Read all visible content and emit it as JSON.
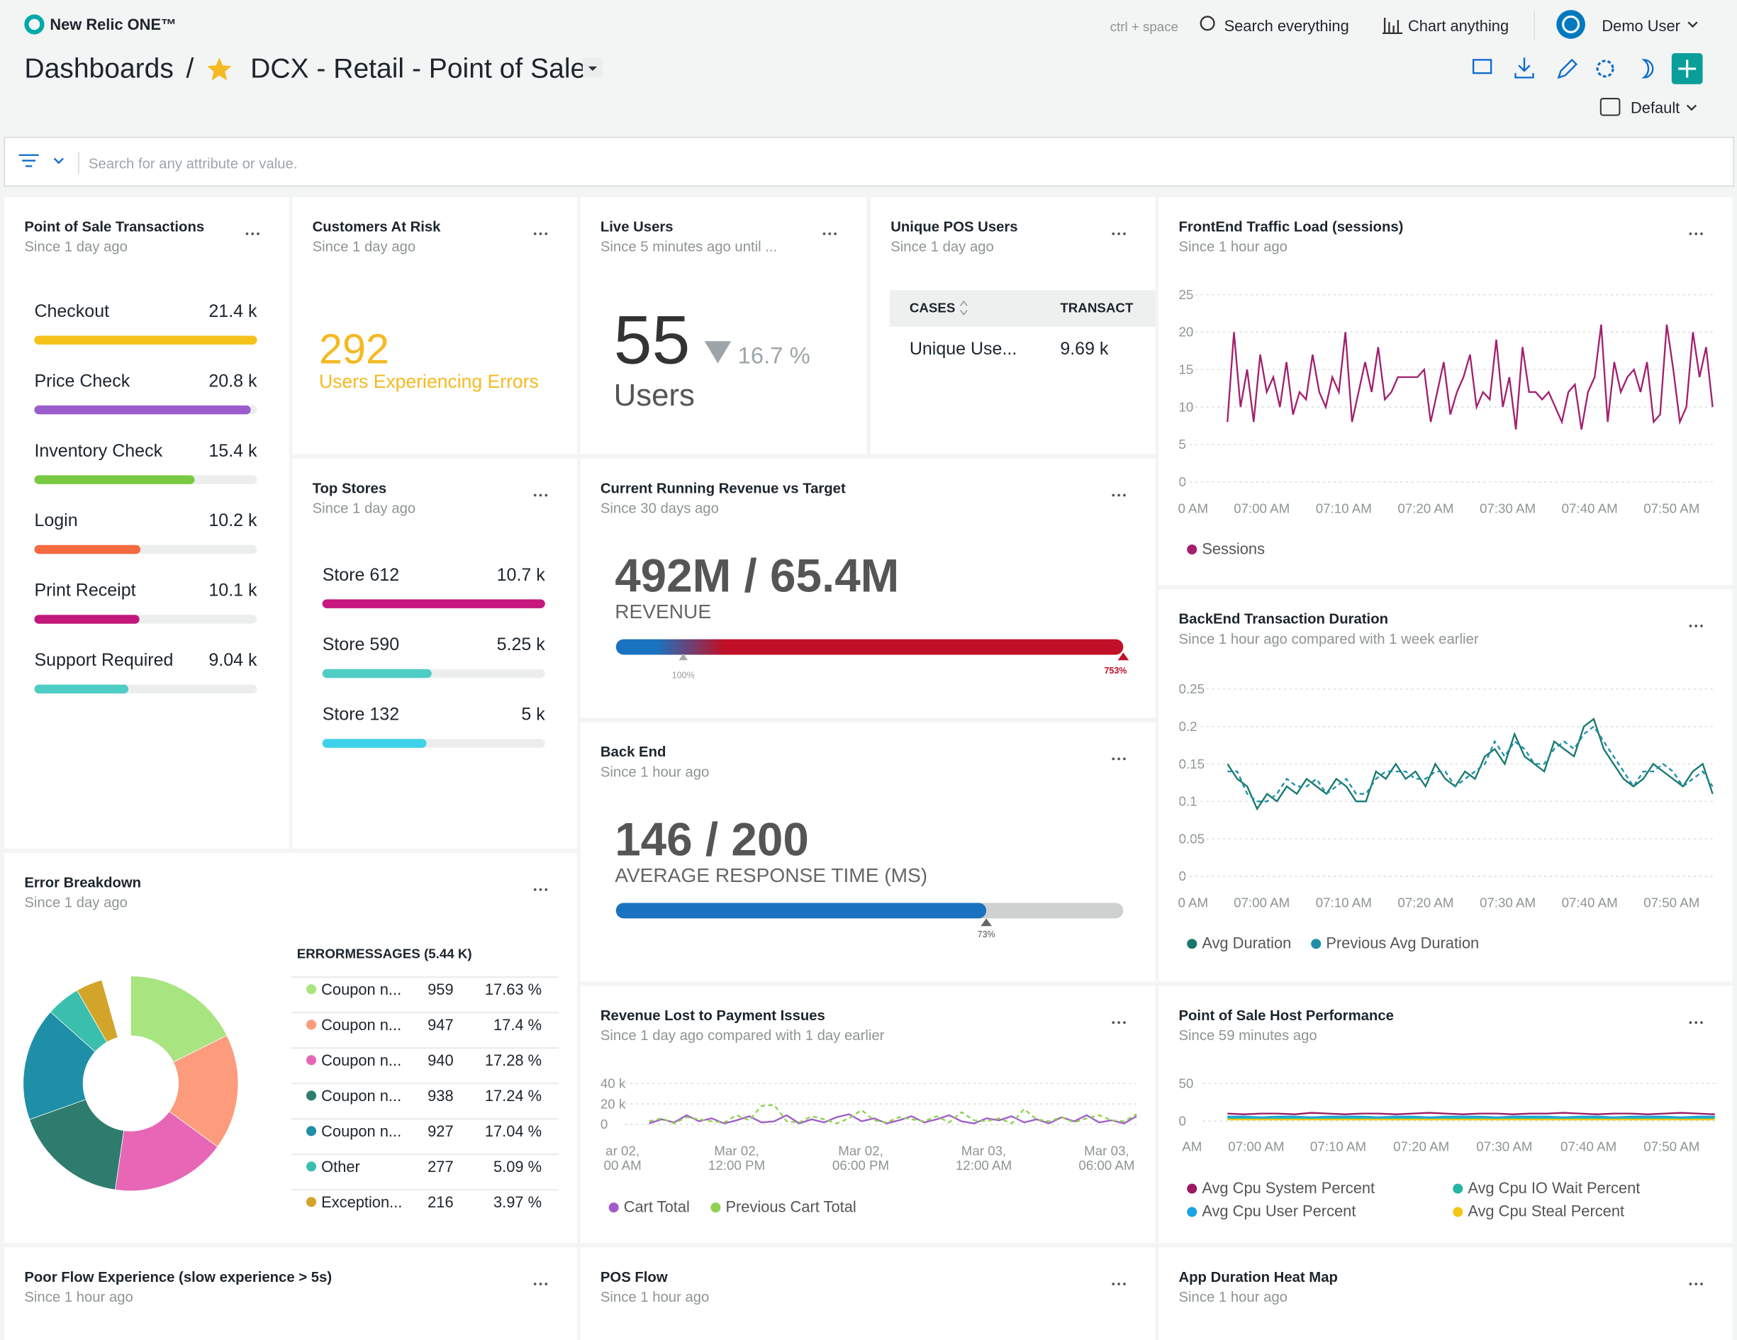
{
  "header": {
    "logo": "New Relic ONE™",
    "shortcut": "ctrl + space",
    "search": "Search everything",
    "chart": "Chart anything",
    "user": "Demo User",
    "breadcrumb": "Dashboards",
    "separator": "/",
    "dashboard": "DCX - Retail - Point of Sale",
    "time_picker": "Default",
    "filter_placeholder": "Search for any attribute or value."
  },
  "widgets": {
    "pos": {
      "type": "bars",
      "title": "Point of Sale Transactions",
      "subtitle": "Since 1 day ago",
      "categories": [
        "Checkout",
        "Price Check",
        "Inventory Check",
        "Login",
        "Print Receipt",
        "Support Required"
      ],
      "values": [
        21400,
        20800,
        15400,
        10200,
        10100,
        9040
      ],
      "value_labels": [
        "21.4 k",
        "20.8 k",
        "15.4 k",
        "10.2 k",
        "10.1 k",
        "9.04 k"
      ],
      "colors": [
        "#f5c21b",
        "#9b5dcc",
        "#7ac943",
        "#f4693f",
        "#c2187a",
        "#4ecdc4"
      ]
    },
    "car": {
      "type": "billboard",
      "title": "Customers At Risk",
      "subtitle": "Since 1 day ago",
      "value": 292,
      "label": "Users Experiencing Errors"
    },
    "live": {
      "type": "change",
      "title": "Live Users",
      "subtitle": "Since 5 minutes ago until ...",
      "value": 55,
      "change": 16.7,
      "change_label": "16.7 %",
      "unit": "Users"
    },
    "uniq": {
      "type": "table",
      "title": "Unique POS Users",
      "subtitle": "Since 1 day ago",
      "columns": [
        "CASES",
        "TRANSACT"
      ],
      "rows": [
        {
          "cell": "Unique Use...",
          "value": 9690,
          "value_label": "9.69 k"
        }
      ]
    },
    "front": {
      "type": "line",
      "title": "FrontEnd Traffic Load (sessions)",
      "subtitle": "Since 1 hour ago",
      "x_labels": [
        "0 AM",
        "07:00 AM",
        "07:10 AM",
        "07:20 AM",
        "07:30 AM",
        "07:40 AM",
        "07:50 AM"
      ],
      "ylim": [
        0,
        25
      ],
      "yticks": [
        0,
        5,
        10,
        15,
        20,
        25
      ],
      "series": [
        {
          "name": "Sessions",
          "color": "#a3206f",
          "values": [
            8,
            20,
            10,
            15,
            8,
            17,
            12,
            14,
            10,
            16,
            9,
            12,
            11,
            17,
            12,
            10,
            14,
            12,
            20,
            8,
            12,
            16,
            12,
            18,
            11,
            12,
            14,
            14,
            14,
            14,
            15,
            8,
            12,
            16,
            9,
            12,
            14,
            17,
            10,
            12,
            11,
            19,
            10,
            14,
            7,
            18,
            12,
            12,
            11,
            12,
            10,
            8,
            12,
            13,
            7,
            12,
            14,
            21,
            8,
            16,
            12,
            14,
            15,
            12,
            16,
            8,
            9,
            21,
            15,
            8,
            10,
            20,
            14,
            18,
            10
          ]
        }
      ]
    },
    "top": {
      "type": "bars",
      "title": "Top Stores",
      "subtitle": "Since 1 day ago",
      "categories": [
        "Store 612",
        "Store 590",
        "Store 132"
      ],
      "values": [
        10700,
        5250,
        5000
      ],
      "value_labels": [
        "10.7 k",
        "5.25 k",
        "5 k"
      ],
      "colors": [
        "#c5177d",
        "#4ecdc4",
        "#3dd1ea"
      ]
    },
    "rev": {
      "type": "progress",
      "title": "Current Running Revenue vs Target",
      "subtitle": "Since 30 days ago",
      "value_text": "492M / 65.4M",
      "label": "REVENUE",
      "target": 100,
      "target_label": "100%",
      "value": 753,
      "value_label": "753%"
    },
    "btd": {
      "type": "line",
      "title": "BackEnd Transaction Duration",
      "subtitle": "Since 1 hour ago compared with 1 week earlier",
      "x_labels": [
        "0 AM",
        "07:00 AM",
        "07:10 AM",
        "07:20 AM",
        "07:30 AM",
        "07:40 AM",
        "07:50 AM"
      ],
      "ylim": [
        0,
        0.25
      ],
      "yticks": [
        0,
        0.05,
        0.1,
        0.15,
        0.2,
        0.25
      ],
      "series": [
        {
          "name": "Avg Duration",
          "color": "#17786c",
          "values": [
            0.15,
            0.13,
            0.12,
            0.09,
            0.11,
            0.1,
            0.12,
            0.11,
            0.13,
            0.12,
            0.11,
            0.13,
            0.12,
            0.1,
            0.1,
            0.14,
            0.13,
            0.15,
            0.13,
            0.14,
            0.12,
            0.15,
            0.13,
            0.12,
            0.14,
            0.13,
            0.16,
            0.17,
            0.15,
            0.19,
            0.16,
            0.15,
            0.14,
            0.18,
            0.17,
            0.16,
            0.2,
            0.21,
            0.17,
            0.15,
            0.13,
            0.12,
            0.13,
            0.15,
            0.14,
            0.13,
            0.12,
            0.14,
            0.15,
            0.11
          ]
        },
        {
          "name": "Previous Avg Duration",
          "color": "#1f8fa8",
          "dash": true,
          "values": [
            0.14,
            0.14,
            0.11,
            0.1,
            0.1,
            0.11,
            0.13,
            0.12,
            0.12,
            0.13,
            0.11,
            0.12,
            0.13,
            0.11,
            0.11,
            0.13,
            0.14,
            0.14,
            0.14,
            0.13,
            0.13,
            0.14,
            0.14,
            0.12,
            0.13,
            0.14,
            0.15,
            0.18,
            0.16,
            0.18,
            0.17,
            0.15,
            0.15,
            0.17,
            0.18,
            0.17,
            0.19,
            0.2,
            0.18,
            0.16,
            0.14,
            0.12,
            0.14,
            0.14,
            0.15,
            0.14,
            0.12,
            0.13,
            0.14,
            0.12
          ]
        }
      ]
    },
    "backend": {
      "type": "progress",
      "title": "Back End",
      "subtitle": "Since 1 hour ago",
      "value_text": "146 / 200",
      "label": "AVERAGE RESPONSE TIME (MS)",
      "value": 73,
      "value_label": "73%"
    },
    "err": {
      "type": "pie",
      "title": "Error Breakdown",
      "subtitle": "Since 1 day ago",
      "table_title": "ERRORMESSAGES (5.44 K)",
      "categories": [
        "Coupon n...",
        "Coupon n...",
        "Coupon n...",
        "Coupon n...",
        "Coupon n...",
        "Other",
        "Exception..."
      ],
      "values": [
        959,
        947,
        940,
        938,
        927,
        277,
        216
      ],
      "percents": [
        17.63,
        17.4,
        17.28,
        17.24,
        17.04,
        5.09,
        3.97
      ],
      "percent_labels": [
        "17.63 %",
        "17.4 %",
        "17.28 %",
        "17.24 %",
        "17.04 %",
        "5.09 %",
        "3.97 %"
      ],
      "colors": [
        "#a8e480",
        "#fc9c7c",
        "#e866b6",
        "#2e7c6d",
        "#1f8fa8",
        "#3bbfad",
        "#d3a42a"
      ]
    },
    "lost": {
      "type": "line",
      "title": "Revenue Lost to Payment Issues",
      "subtitle": "Since 1 day ago compared with 1 day earlier",
      "x_labels": [
        [
          "ar 02,",
          "00 AM"
        ],
        [
          "Mar 02,",
          "12:00 PM"
        ],
        [
          "Mar 02,",
          "06:00 PM"
        ],
        [
          "Mar 03,",
          "12:00 AM"
        ],
        [
          "Mar 03,",
          "06:00 AM"
        ]
      ],
      "ylim": [
        0,
        40000
      ],
      "yticks": [
        0,
        {
          "value": 20000,
          "label": "20 k"
        },
        {
          "value": 40000,
          "label": "40 k"
        }
      ],
      "series": [
        {
          "name": "Cart Total",
          "color": "#a05cc8",
          "values": [
            1000,
            5000,
            2000,
            9000,
            3000,
            6000,
            1000,
            4000,
            8000,
            2000,
            3000,
            9000,
            1000,
            5000,
            2000,
            7000,
            10000,
            3000,
            6000,
            1000,
            4000,
            8000,
            2000,
            5000,
            9000,
            3000,
            1000,
            6000,
            4000,
            8000,
            2000,
            5000,
            1000,
            7000,
            3000,
            9000,
            2000,
            4000,
            1000,
            8000
          ]
        },
        {
          "name": "Previous Cart Total",
          "color": "#8fd14f",
          "dash": true,
          "values": [
            3000,
            6000,
            1000,
            7000,
            5000,
            3000,
            2000,
            9000,
            4000,
            18000,
            19000,
            3000,
            2000,
            8000,
            5000,
            1000,
            6000,
            14000,
            4000,
            2000,
            7000,
            5000,
            3000,
            8000,
            2000,
            12000,
            4000,
            3000,
            6000,
            1000,
            15000,
            5000,
            3000,
            7000,
            2000,
            6000,
            9000,
            4000,
            3000,
            10000
          ]
        }
      ]
    },
    "host": {
      "type": "line",
      "title": "Point of Sale Host Performance",
      "subtitle": "Since 59 minutes ago",
      "x_labels": [
        "AM",
        "07:00 AM",
        "07:10 AM",
        "07:20 AM",
        "07:30 AM",
        "07:40 AM",
        "07:50 AM"
      ],
      "ylim": [
        0,
        50
      ],
      "yticks": [
        0,
        50
      ],
      "series": [
        {
          "name": "Avg Cpu System Percent",
          "color": "#9c1a5f",
          "values": [
            10,
            9,
            10,
            10,
            9,
            11,
            10,
            9,
            10,
            10,
            9,
            10,
            11,
            10,
            9,
            10,
            10,
            9,
            10,
            10,
            11,
            10,
            9,
            10,
            10,
            9,
            10,
            11,
            10,
            9
          ]
        },
        {
          "name": "Avg Cpu IO Wait Percent",
          "color": "#23b5a5",
          "values": [
            4,
            4,
            3,
            4,
            4,
            3,
            4,
            4,
            4,
            3,
            4,
            4,
            3,
            4,
            4,
            4,
            3,
            4,
            4,
            4,
            3,
            4,
            4,
            3,
            4,
            4,
            4,
            3,
            4,
            4
          ]
        },
        {
          "name": "Avg Cpu User Percent",
          "color": "#1aa4e0",
          "values": [
            6,
            6,
            5,
            6,
            6,
            5,
            6,
            6,
            6,
            5,
            6,
            6,
            5,
            6,
            6,
            6,
            5,
            6,
            6,
            6,
            5,
            6,
            6,
            5,
            6,
            6,
            6,
            5,
            6,
            6
          ]
        },
        {
          "name": "Avg Cpu Steal Percent",
          "color": "#f5c518",
          "values": [
            2,
            2,
            2,
            2,
            2,
            2,
            2,
            2,
            2,
            2,
            2,
            2,
            2,
            2,
            2,
            2,
            2,
            2,
            2,
            2,
            2,
            2,
            2,
            2,
            2,
            2,
            2,
            2,
            2,
            2
          ]
        }
      ]
    },
    "poor": {
      "type": "empty",
      "title": "Poor Flow Experience (slow experience > 5s)",
      "subtitle": "Since 1 hour ago"
    },
    "flow": {
      "type": "empty",
      "title": "POS Flow",
      "subtitle": "Since 1 hour ago"
    },
    "heat": {
      "type": "empty",
      "title": "App Duration Heat Map",
      "subtitle": "Since 1 hour ago"
    }
  }
}
